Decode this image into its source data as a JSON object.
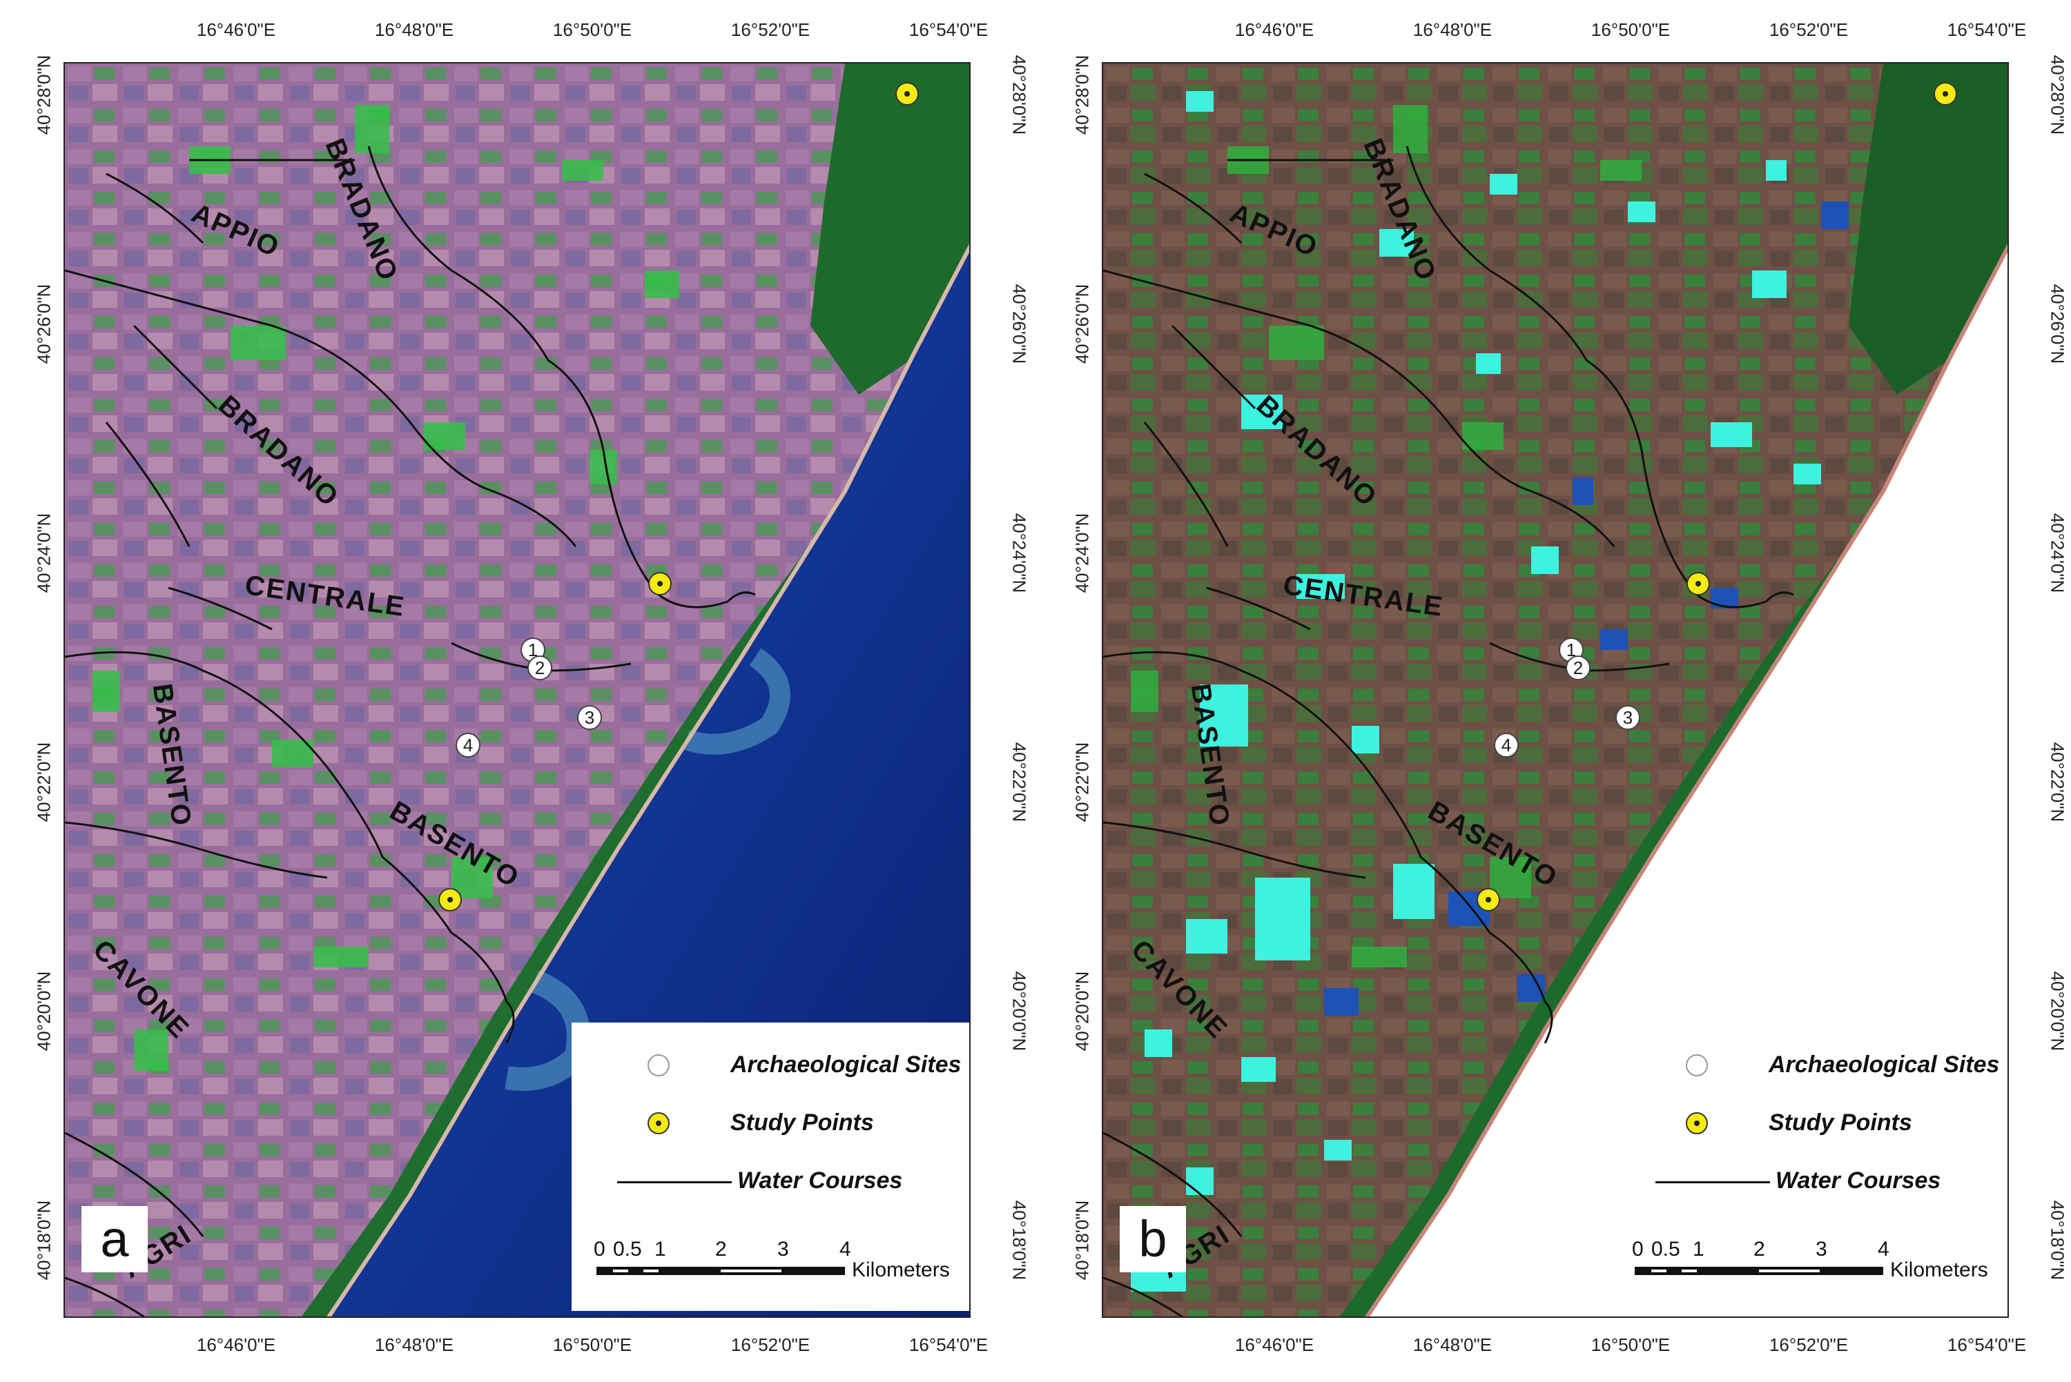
{
  "panels": [
    {
      "letter": "a",
      "variant": "original"
    },
    {
      "letter": "b",
      "variant": "classified"
    }
  ],
  "axes": {
    "longitude_labels": [
      "16°46'0\"E",
      "16°48'0\"E",
      "16°50'0\"E",
      "16°52'0\"E",
      "16°54'0\"E"
    ],
    "latitude_labels": [
      "40°28'0\"N",
      "40°26'0\"N",
      "40°24'0\"N",
      "40°22'0\"N",
      "40°20'0\"N",
      "40°18'0\"N"
    ]
  },
  "river_labels": [
    "BRADANO",
    "APPIO",
    "BRADANO",
    "CENTRALE",
    "BASENTO",
    "BASENTO",
    "CAVONE",
    "AGRI"
  ],
  "archaeological_sites": [
    "1",
    "2",
    "3",
    "4"
  ],
  "legend": {
    "sites": "Archaeological Sites",
    "study_points": "Study Points",
    "water": "Water Courses"
  },
  "scale_bar": {
    "labels": [
      "0",
      "0.5",
      "1",
      "2",
      "3",
      "4"
    ],
    "unit": "Kilometers"
  },
  "colors": {
    "land_purple": "#9b6f9a",
    "vegetation_green": "#2f9b3d",
    "sea_blue": "#10349a",
    "classified_land": "#6f5248",
    "classified_water": "#3ef2e0",
    "study_point": "#f5ea12"
  }
}
